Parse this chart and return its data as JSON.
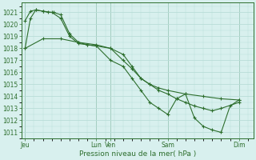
{
  "background_color": "#d8f0ee",
  "grid_color": "#b8ddd8",
  "line_color": "#2d6e2d",
  "marker_color": "#2d6e2d",
  "text_color": "#2d6e2d",
  "xlabel": "Pression niveau de la mer( hPa )",
  "ylim": [
    1010.5,
    1021.8
  ],
  "yticks": [
    1011,
    1012,
    1013,
    1014,
    1015,
    1016,
    1017,
    1018,
    1019,
    1020,
    1021
  ],
  "xlim": [
    -0.2,
    12.8
  ],
  "day_positions": [
    0,
    4.0,
    4.8,
    8.0,
    12.0
  ],
  "day_labels": [
    "Jeu",
    "Lun",
    "Ven",
    "Sam",
    "Dim"
  ],
  "series": [
    {
      "x": [
        0,
        0.3,
        0.6,
        1.0,
        1.3,
        1.6,
        2.0,
        2.5,
        3.0,
        3.5,
        4.0,
        4.8,
        5.5,
        6.0,
        6.5,
        7.0,
        7.5,
        8.0,
        9.0,
        10.0,
        11.0,
        12.0
      ],
      "y": [
        1020.3,
        1021.1,
        1021.2,
        1021.1,
        1021.0,
        1021.0,
        1020.8,
        1019.2,
        1018.5,
        1018.3,
        1018.2,
        1018.0,
        1017.5,
        1016.5,
        1015.5,
        1015.0,
        1014.7,
        1014.5,
        1014.2,
        1014.0,
        1013.8,
        1013.7
      ],
      "has_markers": true
    },
    {
      "x": [
        0,
        1.0,
        2.0,
        3.0,
        4.0,
        4.8,
        5.5,
        6.0,
        6.5,
        7.0,
        7.5,
        8.0,
        8.5,
        9.0,
        9.5,
        10.0,
        10.5,
        11.0,
        12.0
      ],
      "y": [
        1018.0,
        1018.8,
        1018.8,
        1018.5,
        1018.3,
        1018.0,
        1017.0,
        1016.3,
        1015.5,
        1015.0,
        1014.5,
        1014.2,
        1013.8,
        1013.5,
        1013.2,
        1013.0,
        1012.8,
        1013.0,
        1013.5
      ],
      "has_markers": true
    },
    {
      "x": [
        0,
        0.3,
        0.6,
        1.0,
        1.5,
        2.0,
        2.5,
        3.0,
        3.5,
        4.0,
        4.8,
        5.5,
        6.0,
        6.5,
        7.0,
        7.5,
        8.0,
        8.5,
        9.0,
        9.5,
        10.0,
        10.5,
        11.0,
        11.5,
        12.0
      ],
      "y": [
        1018.0,
        1020.5,
        1021.2,
        1021.1,
        1021.0,
        1020.5,
        1019.0,
        1018.4,
        1018.3,
        1018.2,
        1017.0,
        1016.5,
        1015.5,
        1014.5,
        1013.5,
        1013.0,
        1012.5,
        1013.8,
        1014.2,
        1012.2,
        1011.5,
        1011.2,
        1011.0,
        1013.2,
        1013.7
      ],
      "has_markers": true
    }
  ],
  "vlines": [
    0,
    4.0,
    4.8,
    8.0,
    12.0
  ]
}
